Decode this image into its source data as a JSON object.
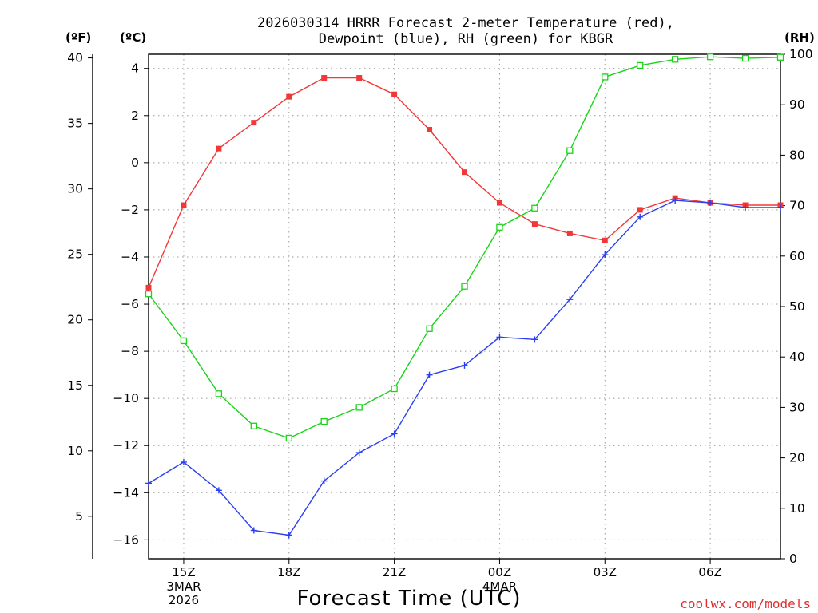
{
  "colors": {
    "temperature": "#f03838",
    "dewpoint": "#2a3ff0",
    "rh": "#18d418",
    "grid": "#9a9a9a",
    "credit": "#e03030"
  },
  "chart_data": {
    "type": "line",
    "title_lines": [
      "2026030314 HRRR Forecast 2-meter Temperature (red),",
      "Dewpoint (blue), RH (green) for KBGR"
    ],
    "xlabel": "Forecast Time (UTC)",
    "credit": "coolwx.com/models",
    "units": {
      "fahrenheit": "(ºF)",
      "celsius": "(ºC)",
      "rh": "(RH)"
    },
    "x": [
      14,
      15,
      16,
      17,
      18,
      19,
      20,
      21,
      22,
      23,
      24,
      25,
      26,
      27,
      28,
      29,
      30,
      31,
      32
    ],
    "xlim": [
      14,
      32
    ],
    "x_ticks": [
      {
        "x": 15,
        "label": "15Z",
        "sub": [
          "3MAR",
          "2026"
        ]
      },
      {
        "x": 18,
        "label": "18Z",
        "sub": []
      },
      {
        "x": 21,
        "label": "21Z",
        "sub": []
      },
      {
        "x": 24,
        "label": "00Z",
        "sub": [
          "4MAR"
        ]
      },
      {
        "x": 27,
        "label": "03Z",
        "sub": []
      },
      {
        "x": 30,
        "label": "06Z",
        "sub": []
      }
    ],
    "y_celsius": {
      "lim": [
        -16.8,
        4.6
      ],
      "ticks": [
        4,
        2,
        0,
        -2,
        -4,
        -6,
        -8,
        -10,
        -12,
        -14,
        -16
      ],
      "labels": [
        "4",
        "2",
        "0",
        "−2",
        "−4",
        "−6",
        "−8",
        "−10",
        "−12",
        "−14",
        "−16"
      ]
    },
    "y_fahrenheit": {
      "ticks": [
        40,
        35,
        30,
        25,
        20,
        15,
        10,
        5
      ],
      "labels": [
        "40",
        "35",
        "30",
        "25",
        "20",
        "15",
        "10",
        "5"
      ]
    },
    "y_rh": {
      "lim": [
        0,
        100
      ],
      "ticks": [
        100,
        90,
        80,
        70,
        60,
        50,
        40,
        30,
        20,
        10,
        0
      ],
      "labels": [
        "100",
        "90",
        "80",
        "70",
        "60",
        "50",
        "40",
        "30",
        "20",
        "10",
        "0"
      ]
    },
    "series": [
      {
        "name": "Temperature",
        "axis": "celsius",
        "marker": "filled-square",
        "values": [
          -5.3,
          -1.8,
          0.6,
          1.7,
          2.8,
          3.6,
          3.6,
          2.9,
          1.4,
          -0.4,
          -1.7,
          -2.6,
          -3.0,
          -3.3,
          -2.0,
          -1.5,
          -1.7,
          -1.8,
          -1.8
        ]
      },
      {
        "name": "Dewpoint",
        "axis": "celsius",
        "marker": "plus",
        "values": [
          -13.6,
          -12.7,
          -13.9,
          -15.6,
          -15.8,
          -13.5,
          -12.3,
          -11.5,
          -9.0,
          -8.6,
          -7.4,
          -7.5,
          -5.8,
          -3.9,
          -2.3,
          -1.6,
          -1.7,
          -1.9,
          -1.9
        ]
      },
      {
        "name": "RH",
        "axis": "rh",
        "marker": "open-square",
        "values": [
          52.5,
          43.2,
          32.7,
          26.3,
          23.9,
          27.2,
          30.0,
          33.7,
          45.6,
          54.0,
          65.7,
          69.5,
          80.9,
          95.5,
          97.8,
          99.0,
          99.5,
          99.2,
          99.4
        ]
      }
    ]
  }
}
